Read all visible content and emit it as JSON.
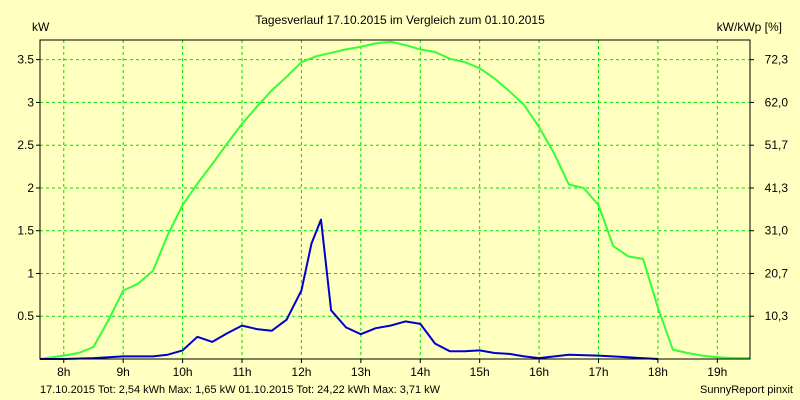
{
  "chart_data": {
    "type": "line",
    "title": "Tagesverlauf 17.10.2015 im Vergleich zum 01.10.2015",
    "ylabel": "kW",
    "ylabel_right": "kW/kWp [%]",
    "xlim": [
      7.6,
      19.55
    ],
    "ylim": [
      0,
      3.73
    ],
    "grid": true,
    "x_ticks": [
      8,
      9,
      10,
      11,
      12,
      13,
      14,
      15,
      16,
      17,
      18,
      19
    ],
    "x_tick_labels": [
      "8h",
      "9h",
      "10h",
      "11h",
      "12h",
      "13h",
      "14h",
      "15h",
      "16h",
      "17h",
      "18h",
      "19h"
    ],
    "y_ticks": [
      0.5,
      1,
      1.5,
      2,
      2.5,
      3,
      3.5
    ],
    "y_tick_labels": [
      "0.5",
      "1",
      "1.5",
      "2",
      "2.5",
      "3",
      "3.5"
    ],
    "y2_ticks": [
      0.5,
      1,
      1.5,
      2,
      2.5,
      3,
      3.5
    ],
    "y2_tick_labels": [
      "10,3",
      "20,7",
      "31,0",
      "41,3",
      "51,7",
      "62,0",
      "72,3"
    ],
    "series": [
      {
        "color": "#0000cc",
        "x": [
          7.6,
          8.0,
          8.5,
          9.0,
          9.25,
          9.5,
          9.75,
          10.0,
          10.25,
          10.5,
          10.75,
          11.0,
          11.25,
          11.5,
          11.75,
          12.0,
          12.17,
          12.33,
          12.5,
          12.75,
          13.0,
          13.25,
          13.5,
          13.75,
          14.0,
          14.25,
          14.5,
          14.75,
          15.0,
          15.25,
          15.5,
          15.75,
          16.0,
          16.5,
          17.0,
          17.5,
          18.0
        ],
        "y": [
          0.0,
          0.0,
          0.01,
          0.03,
          0.03,
          0.03,
          0.05,
          0.1,
          0.26,
          0.2,
          0.3,
          0.39,
          0.35,
          0.33,
          0.46,
          0.8,
          1.35,
          1.63,
          0.57,
          0.37,
          0.29,
          0.36,
          0.39,
          0.44,
          0.41,
          0.18,
          0.09,
          0.09,
          0.1,
          0.07,
          0.06,
          0.03,
          0.01,
          0.05,
          0.04,
          0.02,
          0.0
        ]
      },
      {
        "color": "#33ff33",
        "x": [
          7.6,
          8.0,
          8.25,
          8.5,
          8.75,
          9.0,
          9.25,
          9.5,
          9.75,
          10.0,
          10.25,
          10.5,
          10.75,
          11.0,
          11.25,
          11.5,
          11.75,
          12.0,
          12.25,
          12.5,
          12.75,
          13.0,
          13.25,
          13.5,
          13.75,
          14.0,
          14.25,
          14.5,
          14.75,
          15.0,
          15.25,
          15.5,
          15.75,
          16.0,
          16.25,
          16.5,
          16.75,
          17.0,
          17.25,
          17.5,
          17.75,
          18.0,
          18.25,
          18.5,
          18.75,
          19.0,
          19.25,
          19.55
        ],
        "y": [
          0.0,
          0.04,
          0.07,
          0.14,
          0.45,
          0.8,
          0.88,
          1.03,
          1.45,
          1.8,
          2.05,
          2.28,
          2.52,
          2.75,
          2.95,
          3.14,
          3.3,
          3.47,
          3.54,
          3.58,
          3.62,
          3.65,
          3.69,
          3.71,
          3.67,
          3.62,
          3.59,
          3.51,
          3.47,
          3.4,
          3.28,
          3.13,
          2.97,
          2.71,
          2.41,
          2.04,
          2.0,
          1.8,
          1.32,
          1.2,
          1.17,
          0.6,
          0.11,
          0.07,
          0.04,
          0.02,
          0.01,
          0.01
        ]
      }
    ]
  },
  "legend": {
    "series1_text": "17.10.2015 Tot: 2,54 kWh Max: 1,65 kW",
    "series1_color": "#0000cc",
    "series2_text": "01.10.2015 Tot: 24,22 kWh Max: 3,71 kW",
    "series2_color": "#00cc00"
  },
  "footer": {
    "credit": "SunnyReport pinxit"
  },
  "colors": {
    "background": "#ffffc0",
    "grid": "#00dd00"
  }
}
